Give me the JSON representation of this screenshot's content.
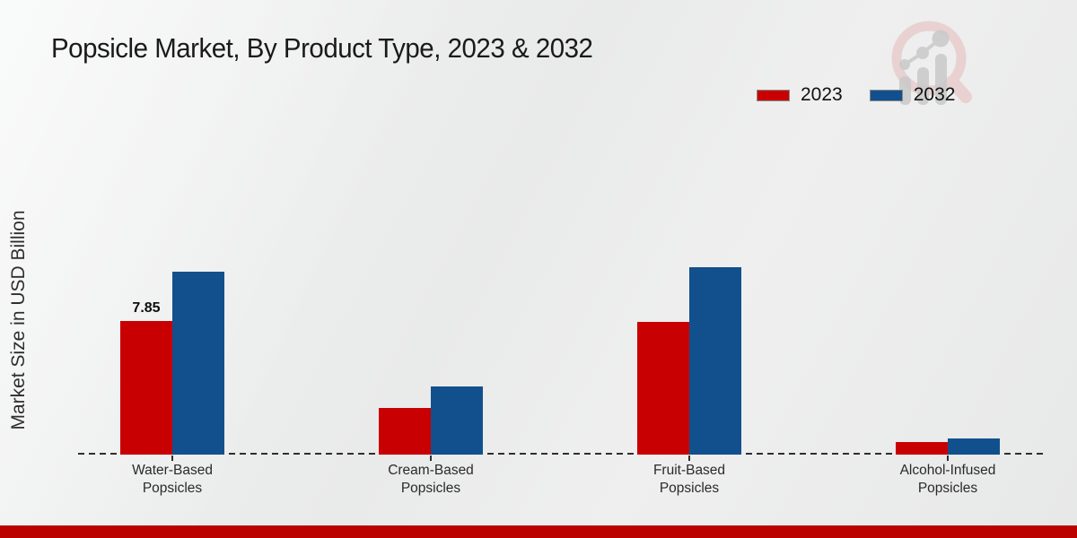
{
  "chart_data": {
    "type": "bar",
    "title": "Popsicle Market, By Product Type, 2023 & 2032",
    "ylabel": "Market Size in USD Billion",
    "xlabel": "",
    "categories": [
      "Water-Based Popsicles",
      "Cream-Based Popsicles",
      "Fruit-Based Popsicles",
      "Alcohol-Infused Popsicles"
    ],
    "series": [
      {
        "name": "2023",
        "color": "#c90002",
        "values": [
          7.85,
          2.75,
          7.8,
          0.75
        ]
      },
      {
        "name": "2032",
        "color": "#12508d",
        "values": [
          10.75,
          4.0,
          11.0,
          0.95
        ]
      }
    ],
    "value_labels": [
      {
        "series": "2023",
        "category_index": 0,
        "text": "7.85"
      }
    ],
    "ylim": [
      0,
      12
    ],
    "grid": false,
    "legend_position": "top-right",
    "baseline_style": "dashed",
    "y_axis_ticks_visible": false
  },
  "branding": {
    "watermark_icon": "magnifier-bar-chart-logo-icon",
    "accent_bar_color": "#bb0201",
    "watermark_ring_color": "#e6c6c4",
    "watermark_gray": "#c9c9c9"
  }
}
